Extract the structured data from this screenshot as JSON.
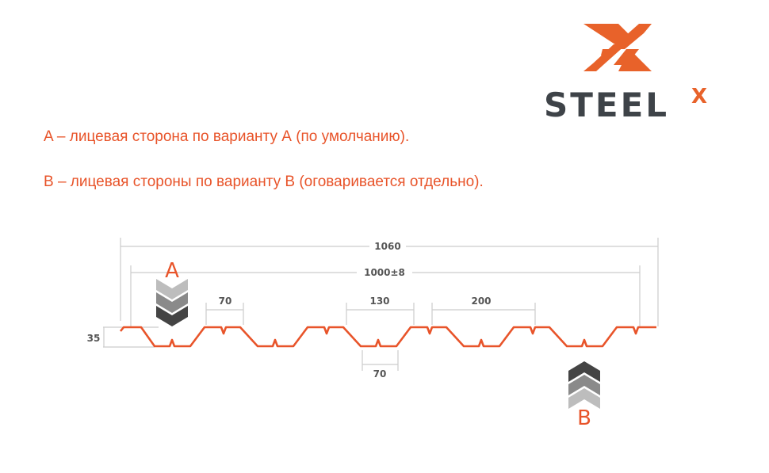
{
  "logo": {
    "text": "STEEL",
    "superscript": "X",
    "accent": "#e8622a",
    "dark": "#3e4348"
  },
  "captions": [
    "A – лицевая сторона по варианту А (по умолчанию).",
    "B – лицевая стороны по варианту B (оговаривается отдельно)."
  ],
  "dimensions": {
    "total_width": "1060",
    "useful_width": "1000±8",
    "top_flange": "70",
    "trough_top": "130",
    "pitch": "200",
    "bottom_flange": "70",
    "height": "35"
  },
  "sides": {
    "a": "A",
    "b": "B"
  },
  "colors": {
    "profile": "#e8542a",
    "dim_lines": "#cccccc",
    "chevron_light": "#bdbdbd",
    "chevron_mid": "#8a8a8a",
    "chevron_dark": "#444444"
  }
}
